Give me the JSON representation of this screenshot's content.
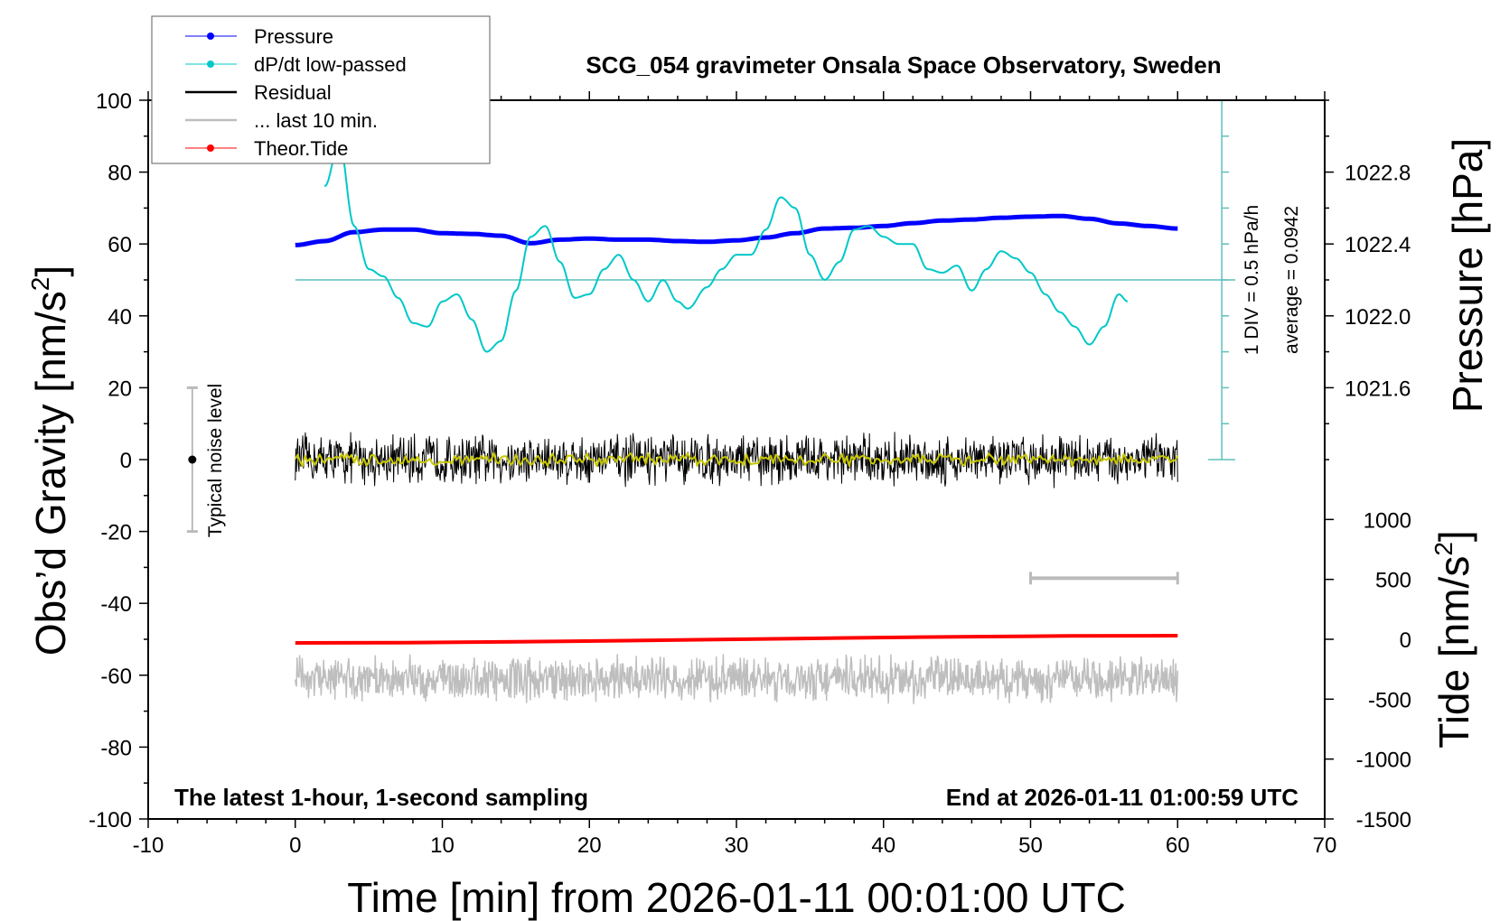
{
  "chart_data": {
    "type": "line",
    "title": "SCG_054 gravimeter Onsala Space Observatory, Sweden",
    "xlabel": "Time [min] from 2026-01-11 00:01:00 UTC",
    "ylabel": "Obs’d Gravity [nm/s",
    "ylabel_sup": "2",
    "ylabel_end": "]",
    "y2label": "Pressure [hPa]",
    "y3label": "Tide [nm/s",
    "y3label_sup": "2",
    "y3label_end": "]",
    "xlim": [
      -10,
      70
    ],
    "ylim": [
      -100,
      100
    ],
    "xticks": [
      "-10",
      "0",
      "10",
      "20",
      "30",
      "40",
      "50",
      "60",
      "70"
    ],
    "yticks": [
      "100",
      "80",
      "60",
      "40",
      "20",
      "0",
      "-20",
      "-40",
      "-60",
      "-80",
      "-100"
    ],
    "pressure_ticks": [
      "1022.8",
      "1022.4",
      "1022.0",
      "1021.6"
    ],
    "pressure_tick_gravity": [
      80,
      60,
      40,
      20
    ],
    "tide_ticks": [
      "1000",
      "500",
      "0",
      "-500",
      "-1000",
      "-1500"
    ],
    "note_left": "The latest 1-hour, 1-second sampling",
    "note_right": "End at 2026-01-11 01:00:59 UTC",
    "dpdt_scale": "1 DIV = 0.5 hPa/h",
    "dpdt_average": "average = 0.0942",
    "noise_label": "Typical noise level",
    "legend": [
      {
        "label": "Pressure",
        "color": "#0000ff",
        "marker": true
      },
      {
        "label": "dP/dt low-passed",
        "color": "#00c8c8",
        "marker": true
      },
      {
        "label": "Residual",
        "color": "#000000",
        "marker": false
      },
      {
        "label": "... last 10 min.",
        "color": "#bebebe",
        "marker": false
      },
      {
        "label": "Theor.Tide",
        "color": "#ff0000",
        "marker": true
      }
    ],
    "series": [
      {
        "name": "Pressure",
        "color": "#0000ff",
        "x": [
          0,
          2,
          4,
          6,
          8,
          10,
          12,
          14,
          16,
          18,
          20,
          22,
          24,
          26,
          28,
          30,
          32,
          34,
          36,
          38,
          40,
          42,
          44,
          46,
          48,
          50,
          52,
          54,
          56,
          58,
          60
        ],
        "y": [
          59.7,
          60.8,
          63.3,
          64,
          64,
          63,
          62.8,
          62.3,
          60.2,
          61.2,
          61.5,
          61.2,
          61.2,
          60.8,
          60.6,
          61,
          61.8,
          63,
          64.3,
          64.5,
          65,
          65.8,
          66.5,
          66.8,
          67.3,
          67.6,
          67.8,
          67,
          65.7,
          65,
          64.3
        ]
      },
      {
        "name": "dP/dt low-passed",
        "color": "#00c8c8",
        "x": [
          2,
          3,
          4,
          5,
          6,
          7,
          8,
          9,
          10,
          11,
          12,
          13,
          14,
          15,
          16,
          17,
          18,
          19,
          20,
          21,
          22,
          23,
          24,
          25,
          26,
          26.7,
          28,
          29,
          30,
          31,
          32,
          33,
          34,
          35,
          36,
          37,
          38,
          39,
          40,
          41,
          42,
          43,
          44,
          45,
          46,
          47,
          48,
          49,
          50,
          51,
          52,
          53,
          54,
          55,
          56,
          56.6
        ],
        "y": [
          76,
          88,
          65,
          53,
          51,
          45,
          38,
          37,
          44,
          46,
          39,
          30,
          33,
          47,
          62,
          65,
          55,
          45,
          46,
          53,
          57,
          50,
          44,
          50,
          44,
          42,
          48,
          53,
          57,
          57,
          64,
          73,
          70,
          57,
          50,
          55,
          64,
          65,
          62,
          60,
          60,
          53,
          52,
          54,
          47,
          53,
          58,
          56,
          52,
          46,
          41,
          37,
          32,
          37,
          46,
          44
        ]
      },
      {
        "name": "Residual",
        "color": "#000000",
        "x_range": [
          0,
          60
        ],
        "center": 0,
        "amplitude": 8
      },
      {
        "name": "Residual smoothed",
        "color": "#c8c800",
        "x_range": [
          0,
          60
        ],
        "center": 0,
        "amplitude": 2
      },
      {
        "name": "... last 10 min.",
        "color": "#bebebe",
        "x_range": [
          0,
          60
        ],
        "center": -61,
        "amplitude": 7
      },
      {
        "name": "Theor.Tide",
        "color": "#ff0000",
        "x": [
          0,
          60
        ],
        "y": [
          -51,
          -49
        ]
      }
    ],
    "dpdt_average_level": 50,
    "last10_bar": [
      50,
      60
    ],
    "noise_bar": {
      "x": -7,
      "range": [
        -20,
        20
      ],
      "center": 0
    }
  }
}
